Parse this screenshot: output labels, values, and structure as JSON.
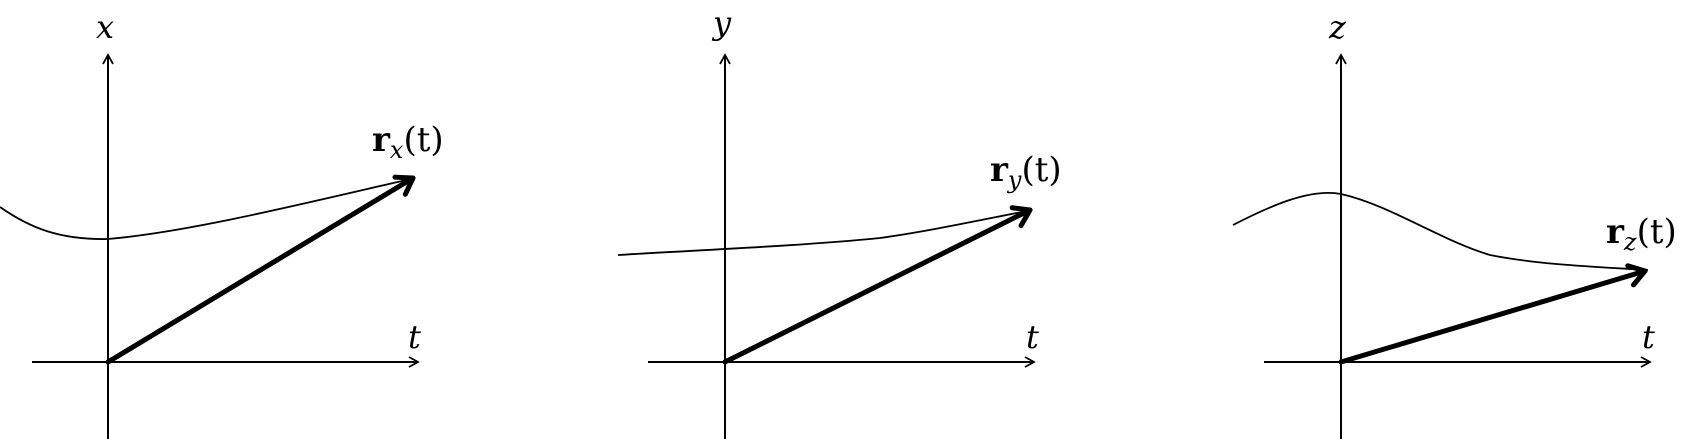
{
  "panels": [
    {
      "key": "x",
      "vertical_label": "x",
      "horizontal_label": "t",
      "vector_name": "r",
      "vector_subscript": "x",
      "vector_arg": "(t)"
    },
    {
      "key": "y",
      "vertical_label": "y",
      "horizontal_label": "t",
      "vector_name": "r",
      "vector_subscript": "y",
      "vector_arg": "(t)"
    },
    {
      "key": "z",
      "vertical_label": "z",
      "horizontal_label": "t",
      "vector_name": "r",
      "vector_subscript": "z",
      "vector_arg": "(t)"
    }
  ]
}
